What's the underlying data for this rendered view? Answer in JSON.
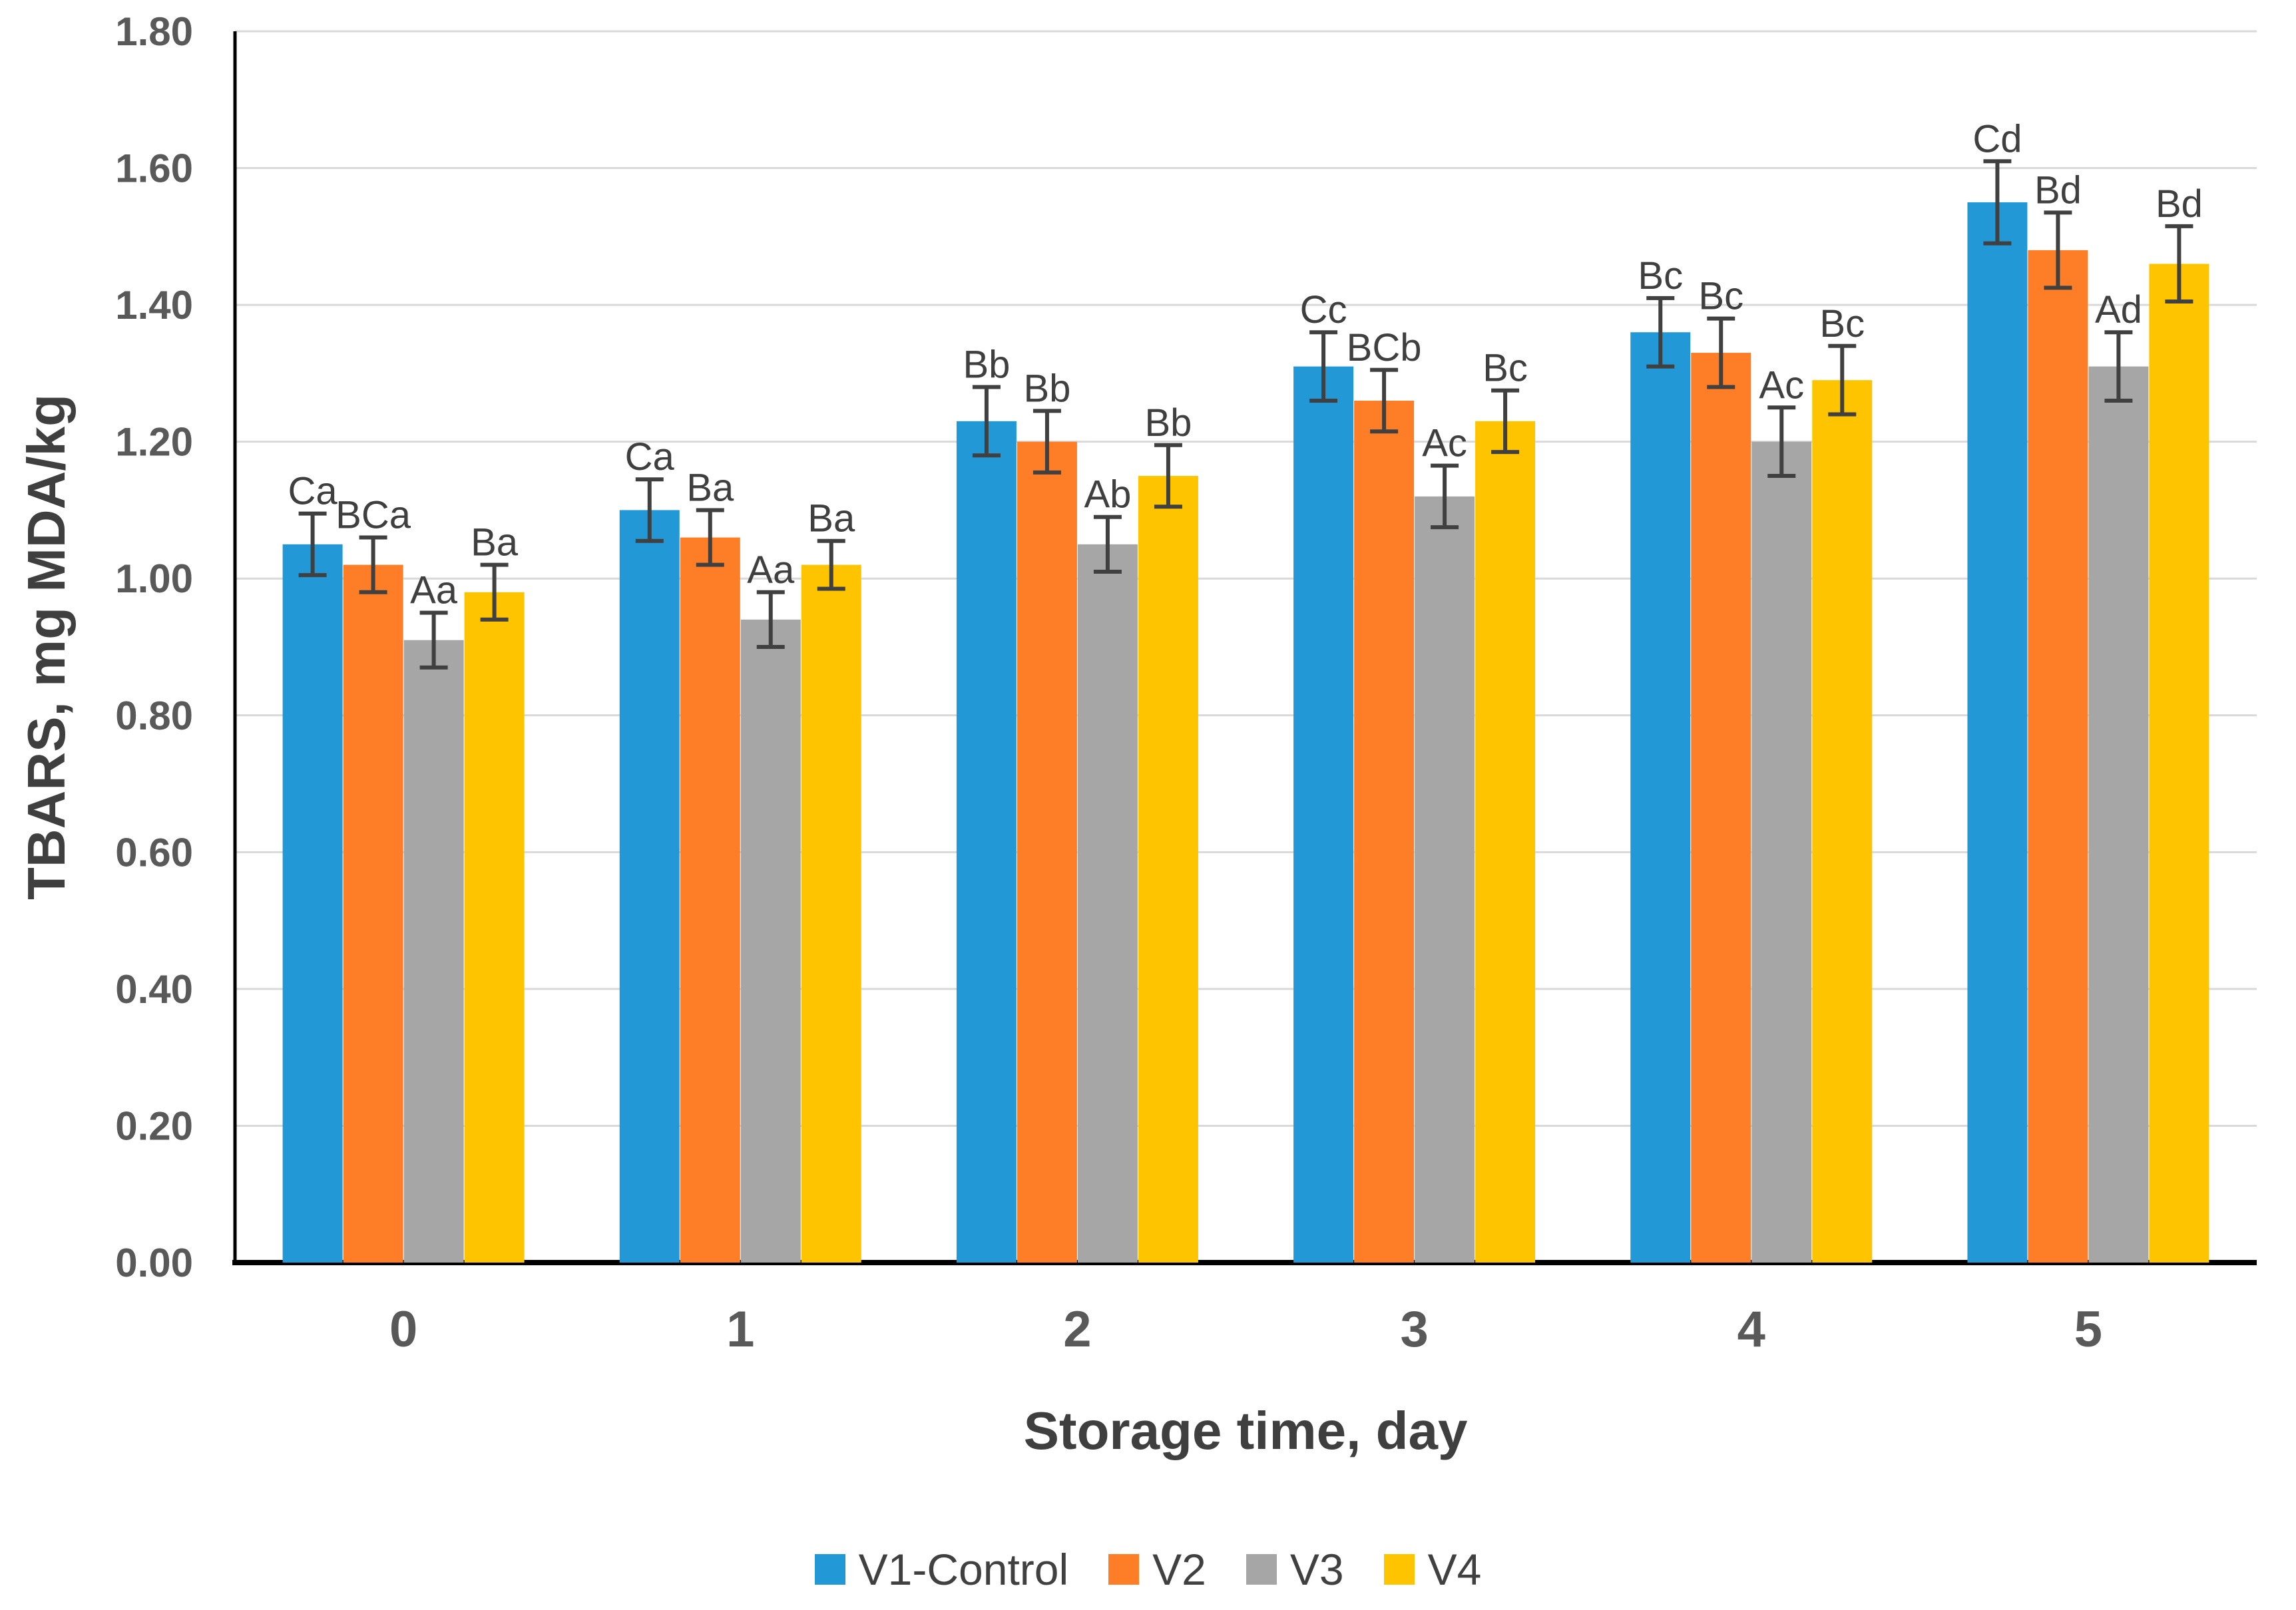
{
  "chart_data": {
    "type": "bar",
    "title": "",
    "xlabel": "Storage time, day",
    "ylabel": "TBARS, mg MDA/kg",
    "categories": [
      "0",
      "1",
      "2",
      "3",
      "4",
      "5"
    ],
    "y_ticks": [
      "0.00",
      "0.20",
      "0.40",
      "0.60",
      "0.80",
      "1.00",
      "1.20",
      "1.40",
      "1.60",
      "1.80"
    ],
    "ylim": [
      0,
      1.8
    ],
    "grid": true,
    "legend_position": "bottom",
    "error_bars": true,
    "colors": {
      "grid": "#D9D9D9",
      "axis": "#000000",
      "tick_text": "#595959",
      "title_text": "#3F3F3F",
      "error_bar": "#404040",
      "annotation_text": "#3F3F3F",
      "legend_text": "#404040",
      "background": "#FFFFFF"
    },
    "series": [
      {
        "name": "V1-Control",
        "color": "#2299D6",
        "values": [
          1.05,
          1.1,
          1.23,
          1.31,
          1.36,
          1.55
        ],
        "errors": [
          0.045,
          0.045,
          0.05,
          0.05,
          0.05,
          0.06
        ],
        "labels": [
          "Ca",
          "Ca",
          "Bb",
          "Cc",
          "Bc",
          "Cd"
        ]
      },
      {
        "name": "V2",
        "color": "#FD7E27",
        "values": [
          1.02,
          1.06,
          1.2,
          1.26,
          1.33,
          1.48
        ],
        "errors": [
          0.04,
          0.04,
          0.045,
          0.045,
          0.05,
          0.055
        ],
        "labels": [
          "BCa",
          "Ba",
          "Bb",
          "BCb",
          "Bc",
          "Bd"
        ]
      },
      {
        "name": "V3",
        "color": "#A6A6A6",
        "values": [
          0.91,
          0.94,
          1.05,
          1.12,
          1.2,
          1.31
        ],
        "errors": [
          0.04,
          0.04,
          0.04,
          0.045,
          0.05,
          0.05
        ],
        "labels": [
          "Aa",
          "Aa",
          "Ab",
          "Ac",
          "Ac",
          "Ad"
        ]
      },
      {
        "name": "V4",
        "color": "#FFC400",
        "values": [
          0.98,
          1.02,
          1.15,
          1.23,
          1.29,
          1.46
        ],
        "errors": [
          0.04,
          0.035,
          0.045,
          0.045,
          0.05,
          0.055
        ],
        "labels": [
          "Ba",
          "Ba",
          "Bb",
          "Bc",
          "Bc",
          "Bd"
        ]
      }
    ]
  }
}
